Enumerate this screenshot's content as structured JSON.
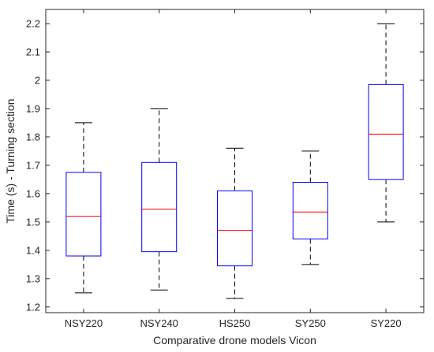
{
  "chart_data": {
    "type": "boxplot",
    "title": "",
    "xlabel": "Comparative drone models Vicon",
    "ylabel": "Time (s) - Turning section",
    "ylim": [
      1.18,
      2.25
    ],
    "yticks": [
      1.2,
      1.3,
      1.4,
      1.5,
      1.6,
      1.7,
      1.8,
      1.9,
      2.0,
      2.1,
      2.2
    ],
    "ytick_labels": [
      "1.2",
      "1.3",
      "1.4",
      "1.5",
      "1.6",
      "1.7",
      "1.8",
      "1.9",
      "2",
      "2.1",
      "2.2"
    ],
    "categories": [
      "NSY220",
      "NSY240",
      "HS250",
      "SY250",
      "SY220"
    ],
    "boxes": [
      {
        "category": "NSY220",
        "min": 1.25,
        "q1": 1.38,
        "median": 1.52,
        "q3": 1.675,
        "max": 1.85
      },
      {
        "category": "NSY240",
        "min": 1.26,
        "q1": 1.395,
        "median": 1.545,
        "q3": 1.71,
        "max": 1.9
      },
      {
        "category": "HS250",
        "min": 1.23,
        "q1": 1.345,
        "median": 1.47,
        "q3": 1.61,
        "max": 1.76
      },
      {
        "category": "SY250",
        "min": 1.35,
        "q1": 1.44,
        "median": 1.535,
        "q3": 1.64,
        "max": 1.75
      },
      {
        "category": "SY220",
        "min": 1.5,
        "q1": 1.65,
        "median": 1.81,
        "q3": 1.985,
        "max": 2.2
      }
    ],
    "grid": false,
    "legend": "none",
    "colors": {
      "box": "#0000ff",
      "median": "#ff0000",
      "whisker": "#000000",
      "axis": "#262626"
    }
  }
}
